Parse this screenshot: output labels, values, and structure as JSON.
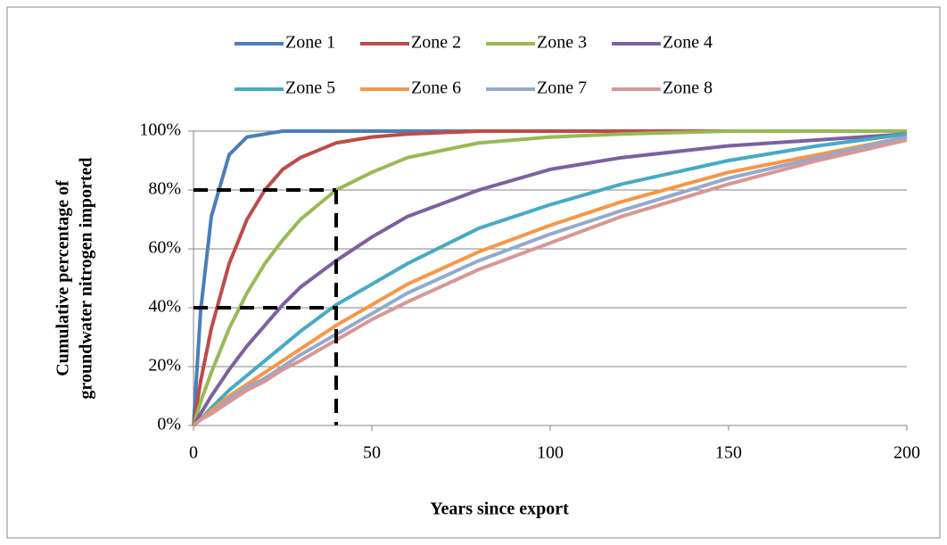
{
  "chart_data": {
    "type": "line",
    "xlabel": "Years since export",
    "ylabel": [
      "Cumulative percentage of",
      "groundwater nitrogen imported"
    ],
    "x": [
      0,
      2,
      5,
      10,
      15,
      20,
      25,
      30,
      40,
      50,
      60,
      80,
      100,
      120,
      150,
      175,
      200
    ],
    "series": [
      {
        "name": "Zone 1",
        "color": "#4a7ebb",
        "values": [
          0,
          39,
          71,
          92,
          98,
          99,
          100,
          100,
          100,
          100,
          100,
          100,
          100,
          100,
          100,
          100,
          100
        ]
      },
      {
        "name": "Zone 2",
        "color": "#be4b48",
        "values": [
          0,
          15,
          33,
          55,
          70,
          80,
          87,
          91,
          96,
          98,
          99,
          100,
          100,
          100,
          100,
          100,
          100
        ]
      },
      {
        "name": "Zone 3",
        "color": "#98b954",
        "values": [
          0,
          8,
          18,
          33,
          45,
          55,
          63,
          70,
          80,
          86,
          91,
          96,
          98,
          99,
          100,
          100,
          100
        ]
      },
      {
        "name": "Zone 4",
        "color": "#7d60a0",
        "values": [
          0,
          4,
          10,
          19,
          27,
          34,
          41,
          47,
          56,
          64,
          71,
          80,
          87,
          91,
          95,
          97,
          99
        ]
      },
      {
        "name": "Zone 5",
        "color": "#46aac5",
        "values": [
          0,
          2,
          6,
          12,
          17,
          22,
          27,
          32,
          41,
          48,
          55,
          67,
          75,
          82,
          90,
          95,
          99
        ]
      },
      {
        "name": "Zone 6",
        "color": "#f79646",
        "values": [
          0,
          2,
          5,
          10,
          14,
          18,
          22,
          26,
          34,
          41,
          48,
          59,
          68,
          76,
          86,
          92,
          98
        ]
      },
      {
        "name": "Zone 7",
        "color": "#93a9cf",
        "values": [
          0,
          2,
          4,
          9,
          13,
          16,
          20,
          24,
          31,
          38,
          45,
          56,
          65,
          73,
          84,
          91,
          98
        ]
      },
      {
        "name": "Zone 8",
        "color": "#d99694",
        "values": [
          0,
          2,
          4,
          8,
          12,
          15,
          19,
          22,
          29,
          36,
          42,
          53,
          62,
          71,
          82,
          90,
          97
        ]
      }
    ],
    "reference_lines": [
      {
        "x": [
          0,
          40
        ],
        "y": [
          80,
          80
        ]
      },
      {
        "x": [
          0,
          40
        ],
        "y": [
          40,
          40
        ]
      },
      {
        "x": [
          40,
          40
        ],
        "y": [
          80,
          0
        ]
      }
    ],
    "xlim": [
      0,
      200
    ],
    "xticks": [
      0,
      50,
      100,
      150,
      200
    ],
    "ylim": [
      0,
      100
    ],
    "yticks": [
      {
        "value": 0,
        "label": "0%"
      },
      {
        "value": 20,
        "label": "20%"
      },
      {
        "value": 40,
        "label": "40%"
      },
      {
        "value": 60,
        "label": "60%"
      },
      {
        "value": 80,
        "label": "80%"
      },
      {
        "value": 100,
        "label": "100%"
      }
    ],
    "grid": true,
    "legend": "top"
  }
}
